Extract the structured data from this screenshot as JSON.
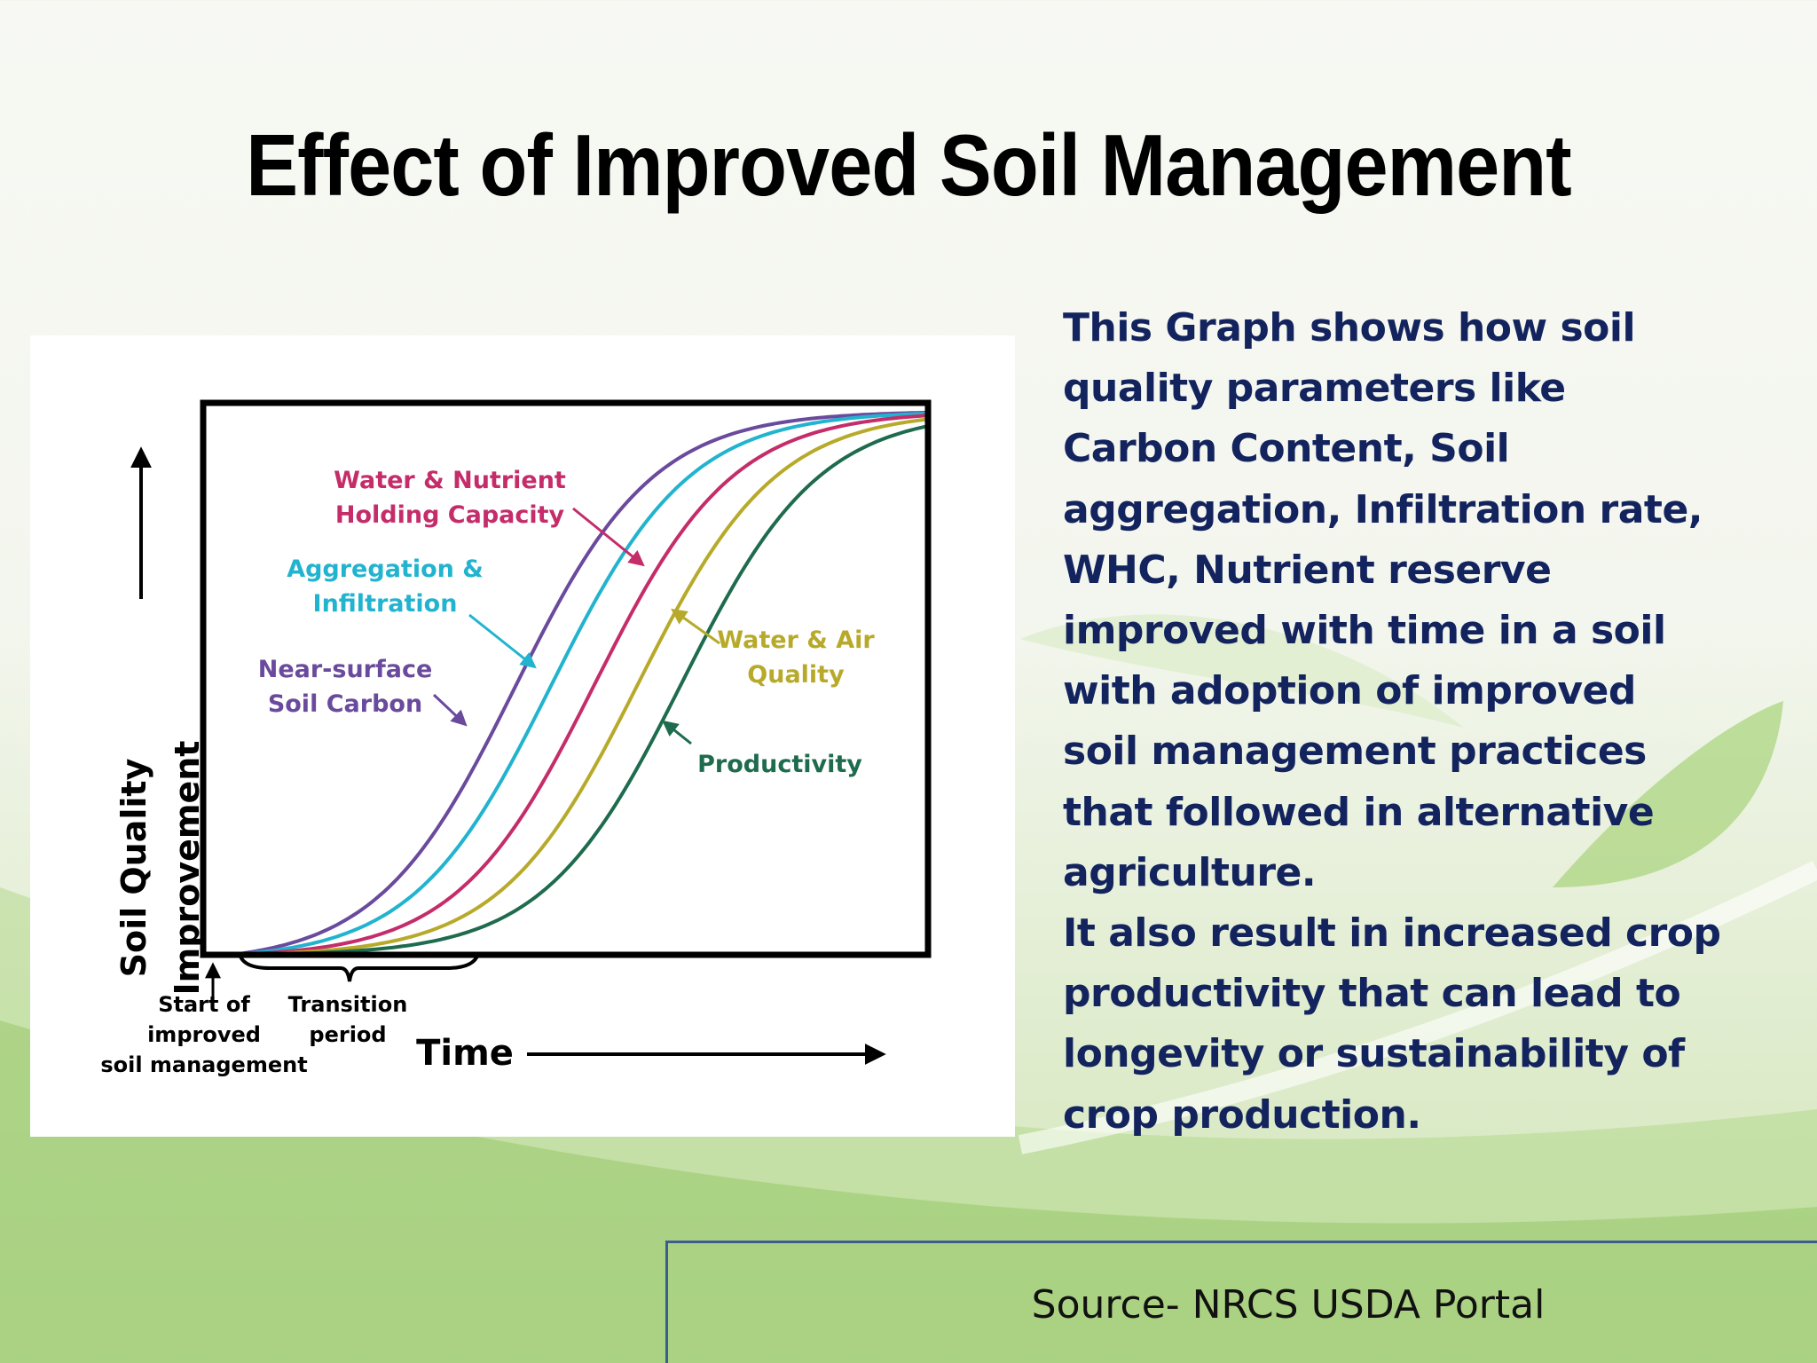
{
  "slide": {
    "title": "Effect of  Improved Soil Management",
    "description_1": "This Graph shows how soil\nquality parameters like\nCarbon Content, Soil\naggregation, Infiltration rate,\nWHC, Nutrient reserve\nimproved with time in a soil\nwith adoption of improved\nsoil management practices\nthat followed in alternative\nagriculture.",
    "description_2": "It also result in increased crop\nproductivity that can lead to\nlongevity or sustainability of\ncrop production.",
    "source": "Source- NRCS USDA Portal"
  },
  "chart_data": {
    "type": "line",
    "ylabel_line1": "Soil Quality",
    "ylabel_line2": "Improvement",
    "xlabel": "Time",
    "start_label": [
      "Start of",
      "improved",
      "soil management"
    ],
    "transition_label": [
      "Transition",
      "period"
    ],
    "xlim": [
      0,
      1
    ],
    "ylim": [
      0,
      1
    ],
    "series": [
      {
        "name": "Near-surface Soil Carbon",
        "label_lines": [
          "Near-surface",
          "Soil Carbon"
        ],
        "color": "#6a4a9c",
        "midpoint": 0.43
      },
      {
        "name": "Aggregation & Infiltration",
        "label_lines": [
          "Aggregation &",
          "Infiltration"
        ],
        "color": "#22b3cf",
        "midpoint": 0.48
      },
      {
        "name": "Water & Nutrient Holding Capacity",
        "label_lines": [
          "Water & Nutrient",
          "Holding Capacity"
        ],
        "color": "#c42d6a",
        "midpoint": 0.54
      },
      {
        "name": "Water & Air Quality",
        "label_lines": [
          "Water & Air",
          "Quality"
        ],
        "color": "#b7aa2b",
        "midpoint": 0.6
      },
      {
        "name": "Productivity",
        "label_lines": [
          "Productivity"
        ],
        "color": "#1e6b4d",
        "midpoint": 0.66
      }
    ]
  }
}
